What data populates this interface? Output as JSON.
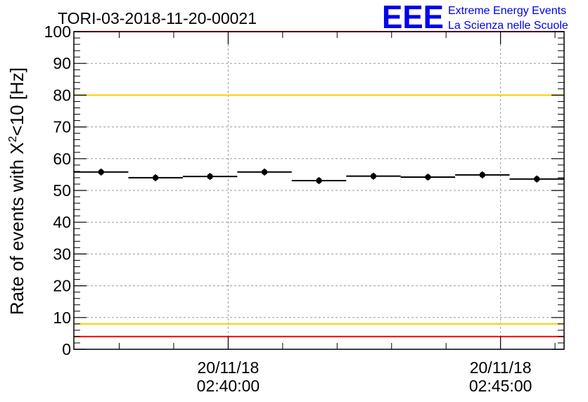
{
  "header": {
    "run_title": "TORI-03-2018-11-20-00021",
    "logo_text": "EEE",
    "org_line1": "Extreme Energy Events",
    "org_line2": "La Scienza nelle Scuole"
  },
  "colors": {
    "red_threshold": "#ff0000",
    "yellow_threshold": "#ffcc00",
    "points": "#000000",
    "logo": "#0000ee",
    "grid": "#9a9a9a"
  },
  "chart_data": {
    "type": "scatter",
    "title": "TORI-03-2018-11-20-00021",
    "ylabel": "Rate of events with X²<10 [Hz]",
    "ylabel_main": "Rate of events with X",
    "ylabel_sup": "2",
    "ylabel_tail": "<10 [Hz]",
    "xlabel": "",
    "ylim": [
      0,
      100
    ],
    "yticks": [
      0,
      10,
      20,
      30,
      40,
      50,
      60,
      70,
      80,
      90,
      100
    ],
    "xlim": [
      "2018-11-20 02:37:10",
      "2018-11-20 02:46:10"
    ],
    "xticks": [
      {
        "date": "20/11/18",
        "time": "02:40:00",
        "value": "2018-11-20 02:40:00"
      },
      {
        "date": "20/11/18",
        "time": "02:45:00",
        "value": "2018-11-20 02:45:00"
      }
    ],
    "grid": true,
    "thresholds": [
      {
        "value": 100,
        "color": "red"
      },
      {
        "value": 80,
        "color": "yellow"
      },
      {
        "value": 8,
        "color": "yellow"
      },
      {
        "value": 4,
        "color": "red"
      }
    ],
    "bins": [
      {
        "start": "02:37:10",
        "end": "02:38:10",
        "y": 55.8
      },
      {
        "start": "02:38:10",
        "end": "02:39:10",
        "y": 54.0
      },
      {
        "start": "02:39:10",
        "end": "02:40:10",
        "y": 54.4
      },
      {
        "start": "02:40:10",
        "end": "02:41:10",
        "y": 55.8
      },
      {
        "start": "02:41:10",
        "end": "02:42:10",
        "y": 53.1
      },
      {
        "start": "02:42:10",
        "end": "02:43:10",
        "y": 54.5
      },
      {
        "start": "02:43:10",
        "end": "02:44:10",
        "y": 54.2
      },
      {
        "start": "02:44:10",
        "end": "02:45:10",
        "y": 54.9
      },
      {
        "start": "02:45:10",
        "end": "02:46:10",
        "y": 53.6
      }
    ]
  }
}
